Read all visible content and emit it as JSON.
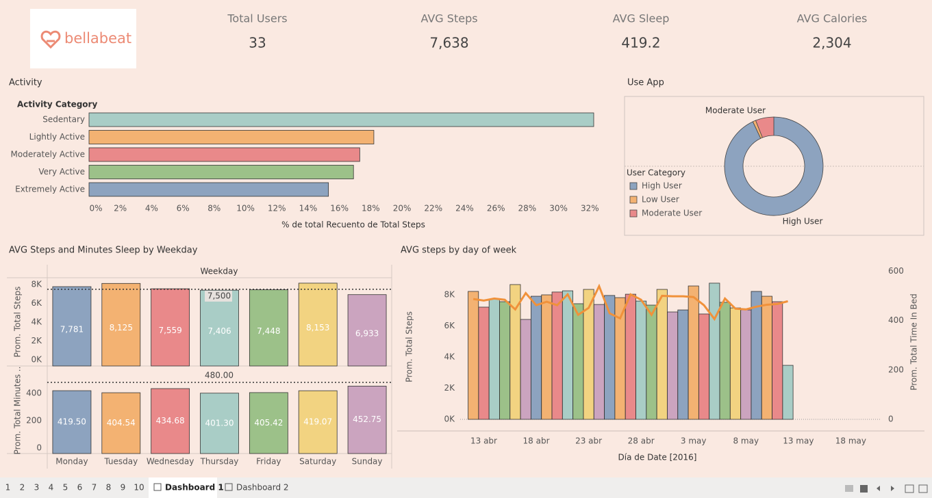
{
  "header": {
    "logo": "bellabeat"
  },
  "kpis": [
    {
      "label": "Total Users",
      "value": "33"
    },
    {
      "label": "AVG Steps",
      "value": "7,638"
    },
    {
      "label": "AVG Sleep",
      "value": "419.2"
    },
    {
      "label": "AVG Calories",
      "value": "2,304"
    }
  ],
  "chart_data": [
    {
      "type": "hbar",
      "title": "Activity",
      "category_label": "Activity Category",
      "categories": [
        "Sedentary",
        "Lightly Active",
        "Moderately Active",
        "Very Active",
        "Extremely Active"
      ],
      "values": [
        32.25,
        18.2,
        17.3,
        16.9,
        15.3
      ],
      "colors": [
        "#a9cdc6",
        "#f3b272",
        "#e9898a",
        "#9cc189",
        "#8da3bf"
      ],
      "xlim": [
        0,
        32.6
      ],
      "xticks": [
        {
          "value": 0,
          "label": "0%"
        },
        {
          "value": 2,
          "label": "2%"
        },
        {
          "value": 4,
          "label": "4%"
        },
        {
          "value": 6,
          "label": "6%"
        },
        {
          "value": 8,
          "label": "8%"
        },
        {
          "value": 10,
          "label": "10%"
        },
        {
          "value": 12,
          "label": "12%"
        },
        {
          "value": 14,
          "label": "14%"
        },
        {
          "value": 16,
          "label": "16%"
        },
        {
          "value": 18,
          "label": "18%"
        },
        {
          "value": 20,
          "label": "20%"
        },
        {
          "value": 22,
          "label": "22%"
        },
        {
          "value": 24,
          "label": "24%"
        },
        {
          "value": 26,
          "label": "26%"
        },
        {
          "value": 28,
          "label": "28%"
        },
        {
          "value": 30,
          "label": "30%"
        },
        {
          "value": 32,
          "label": "32%"
        }
      ],
      "xlabel": "% de total Recuento de Total Steps"
    },
    {
      "type": "donut",
      "title": "Use App",
      "legend_title": "User Category",
      "categories": [
        "High User",
        "Low User",
        "Moderate User"
      ],
      "values": [
        93,
        1,
        6
      ],
      "colors": [
        "#8da3bf",
        "#f3b272",
        "#e9898a"
      ]
    },
    {
      "type": "bar_panels",
      "title": "AVG Steps and Minutes Sleep by Weekday",
      "xlabel": "Weekday",
      "categories": [
        "Monday",
        "Tuesday",
        "Wednesday",
        "Thursday",
        "Friday",
        "Saturday",
        "Sunday"
      ],
      "colors": [
        "#8da3bf",
        "#f3b272",
        "#e9898a",
        "#a9cdc6",
        "#9cc189",
        "#f2d381",
        "#cba4bf"
      ],
      "panels": [
        {
          "ylabel": "Prom. Total Steps",
          "values": [
            7781,
            8125,
            7559,
            7406,
            7448,
            8153,
            6933
          ],
          "value_labels": [
            "7,781",
            "8,125",
            "7,559",
            "7,406",
            "7,448",
            "8,153",
            "6,933"
          ],
          "ylim": [
            0,
            8730
          ],
          "yticks": [
            {
              "value": 0,
              "label": "0K"
            },
            {
              "value": 2000,
              "label": "2K"
            },
            {
              "value": 4000,
              "label": "4K"
            },
            {
              "value": 6000,
              "label": "6K"
            },
            {
              "value": 8000,
              "label": "8K"
            }
          ],
          "reference": {
            "value": 7500,
            "label": "7,500"
          }
        },
        {
          "ylabel": "Prom. Total Minutes ..",
          "values": [
            419.5,
            404.54,
            434.68,
            401.3,
            405.42,
            419.07,
            452.75
          ],
          "value_labels": [
            "419.50",
            "404.54",
            "434.68",
            "401.30",
            "405.42",
            "419.07",
            "452.75"
          ],
          "ylim": [
            0,
            590
          ],
          "yticks": [
            0,
            200,
            400
          ],
          "reference": {
            "value": 480,
            "label": "480.00"
          }
        }
      ]
    },
    {
      "type": "combo",
      "title": "AVG steps by day of week",
      "x": [
        "2016-04-12",
        "2016-04-13",
        "2016-04-14",
        "2016-04-15",
        "2016-04-16",
        "2016-04-17",
        "2016-04-18",
        "2016-04-19",
        "2016-04-20",
        "2016-04-21",
        "2016-04-22",
        "2016-04-23",
        "2016-04-24",
        "2016-04-25",
        "2016-04-26",
        "2016-04-27",
        "2016-04-28",
        "2016-04-29",
        "2016-04-30",
        "2016-05-01",
        "2016-05-02",
        "2016-05-03",
        "2016-05-04",
        "2016-05-05",
        "2016-05-06",
        "2016-05-07",
        "2016-05-08",
        "2016-05-09",
        "2016-05-10",
        "2016-05-11",
        "2016-05-12"
      ],
      "xlim": [
        "2016-04-05",
        "2016-05-20"
      ],
      "xticks": [
        {
          "value": "2016-04-13",
          "label": "13 abr"
        },
        {
          "value": "2016-04-18",
          "label": "18 abr"
        },
        {
          "value": "2016-04-23",
          "label": "23 abr"
        },
        {
          "value": "2016-04-28",
          "label": "28 abr"
        },
        {
          "value": "2016-05-03",
          "label": "3 may"
        },
        {
          "value": "2016-05-08",
          "label": "8 may"
        },
        {
          "value": "2016-05-13",
          "label": "13 may"
        },
        {
          "value": "2016-05-18",
          "label": "18 may"
        }
      ],
      "xlabel": "Día de Date [2016]",
      "ylabel": "Prom. Total Steps",
      "ylim": [
        0,
        10000
      ],
      "yticks": [
        {
          "value": 0,
          "label": "0K"
        },
        {
          "value": 2000,
          "label": "2K"
        },
        {
          "value": 4000,
          "label": "4K"
        },
        {
          "value": 6000,
          "label": "6K"
        },
        {
          "value": 8000,
          "label": "8K"
        }
      ],
      "y2label": "Prom. Total Time In Bed",
      "y2lim": [
        0,
        630
      ],
      "y2ticks": [
        0,
        200,
        400,
        600
      ],
      "series": [
        {
          "type": "bar",
          "values": [
            8220,
            7210,
            7740,
            7560,
            8660,
            6420,
            7910,
            8000,
            8180,
            8260,
            7430,
            8350,
            7380,
            7960,
            7820,
            8040,
            7600,
            7340,
            8350,
            6900,
            7030,
            8570,
            6770,
            8750,
            7520,
            7160,
            7030,
            8220,
            7910,
            7560,
            3470
          ],
          "colors": [
            "#f3b272",
            "#e9898a",
            "#a9cdc6",
            "#9cc189",
            "#f2d381",
            "#cba4bf",
            "#8da3bf",
            "#f3b272",
            "#e9898a",
            "#a9cdc6",
            "#9cc189",
            "#f2d381",
            "#cba4bf",
            "#8da3bf",
            "#f3b272",
            "#e9898a",
            "#a9cdc6",
            "#9cc189",
            "#f2d381",
            "#cba4bf",
            "#8da3bf",
            "#f3b272",
            "#e9898a",
            "#a9cdc6",
            "#9cc189",
            "#f2d381",
            "#cba4bf",
            "#8da3bf",
            "#f3b272",
            "#e9898a",
            "#a9cdc6"
          ]
        },
        {
          "type": "line",
          "axis": "y2",
          "color": "#f0913a",
          "values": [
            487,
            481,
            489,
            484,
            445,
            511,
            462,
            476,
            462,
            506,
            423,
            451,
            539,
            429,
            409,
            506,
            484,
            423,
            500,
            498,
            498,
            495,
            462,
            406,
            489,
            448,
            445,
            456,
            464,
            467,
            478
          ]
        }
      ]
    }
  ],
  "tabs": [
    "1",
    "2",
    "3",
    "4",
    "5",
    "6",
    "7",
    "8",
    "9",
    "10",
    "Dashboard 1",
    "Dashboard 2"
  ]
}
